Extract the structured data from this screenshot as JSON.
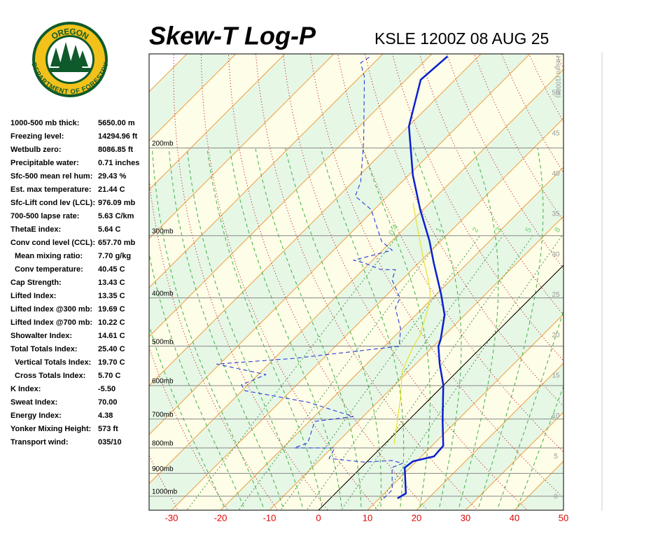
{
  "logo": {
    "top": "OREGON",
    "bottom": "DEPARTMENT OF FORESTRY"
  },
  "title": "Skew-T Log-P",
  "station": "KSLE 1200Z 08 AUG 25",
  "stats": [
    {
      "label": "1000-500 mb thick:",
      "value": "5650.00 m"
    },
    {
      "label": "Freezing level:",
      "value": "14294.96 ft"
    },
    {
      "label": "Wetbulb zero:",
      "value": "8086.85 ft"
    },
    {
      "label": "Precipitable water:",
      "value": "0.71 inches"
    },
    {
      "label": "Sfc-500 mean rel hum:",
      "value": "29.43 %"
    },
    {
      "label": "Est. max temperature:",
      "value": "21.44 C"
    },
    {
      "label": "Sfc-Lift cond lev (LCL):",
      "value": "976.09 mb"
    },
    {
      "label": "700-500 lapse rate:",
      "value": "5.63 C/km"
    },
    {
      "label": "ThetaE index:",
      "value": "5.64 C"
    },
    {
      "label": "Conv cond level (CCL):",
      "value": "657.70 mb"
    },
    {
      "label": "Mean mixing ratio:",
      "value": "7.70 g/kg",
      "indent": true
    },
    {
      "label": "Conv temperature:",
      "value": "40.45 C",
      "indent": true
    },
    {
      "label": "Cap Strength:",
      "value": "13.43 C"
    },
    {
      "label": "Lifted Index:",
      "value": "13.35 C"
    },
    {
      "label": "Lifted Index @300 mb:",
      "value": "19.69 C"
    },
    {
      "label": "Lifted Index @700 mb:",
      "value": "10.22 C"
    },
    {
      "label": "Showalter Index:",
      "value": "14.61 C"
    },
    {
      "label": "Total Totals Index:",
      "value": "25.40 C"
    },
    {
      "label": "Vertical Totals Index:",
      "value": "19.70 C",
      "indent": true
    },
    {
      "label": "Cross Totals Index:",
      "value": "5.70 C",
      "indent": true
    },
    {
      "label": "K Index:",
      "value": "-5.50"
    },
    {
      "label": "Sweat Index:",
      "value": "70.00"
    },
    {
      "label": "Energy Index:",
      "value": "4.38"
    },
    {
      "label": "Yonker Mixing Height:",
      "value": "573 ft"
    },
    {
      "label": "Transport wind:",
      "value": "035/10"
    }
  ],
  "chart_data": {
    "type": "skewt",
    "xticks": [
      -30,
      -20,
      -10,
      0,
      10,
      20,
      30,
      40,
      50
    ],
    "pressure_ticks": [
      {
        "value": 200,
        "label": "200mb"
      },
      {
        "value": 300,
        "label": "300mb"
      },
      {
        "value": 400,
        "label": "400mb"
      },
      {
        "value": 500,
        "label": "500mb"
      },
      {
        "value": 600,
        "label": "600mb"
      },
      {
        "value": 700,
        "label": "700mb"
      },
      {
        "value": 800,
        "label": "800mb"
      },
      {
        "value": 900,
        "label": "900mb"
      },
      {
        "value": 1000,
        "label": "1000mb"
      }
    ],
    "height_label": "Height (1000ft)",
    "height_ticks": [
      0,
      5,
      10,
      15,
      20,
      25,
      30,
      35,
      40,
      45,
      50
    ],
    "mixing_ratio_labels": [
      0.4,
      1,
      2,
      3,
      5,
      8
    ],
    "series": [
      {
        "color": "#0a1fd0",
        "style": "solid",
        "pressure": [
          1010,
          987,
          876,
          851,
          832,
          792,
          703,
          598,
          543,
          500,
          485,
          433,
          393,
          340,
          307,
          266,
          227,
          181,
          146,
          131
        ],
        "values": [
          13.7,
          14.4,
          8.9,
          9.3,
          12.6,
          12.3,
          6.9,
          -0.1,
          -5.1,
          -9.0,
          -9.9,
          -14.1,
          -19.1,
          -27.0,
          -32.4,
          -40.6,
          -49.1,
          -59.9,
          -67.0,
          -66.3
        ]
      },
      {
        "color": "#1a2ad8",
        "style": "dashed",
        "pressure": [
          1010,
          971,
          876,
          859,
          848,
          854,
          840,
          800,
          800,
          782,
          708,
          692,
          648,
          614,
          598,
          570,
          543,
          529,
          500,
          461,
          419,
          400,
          368,
          351,
          351,
          340,
          336,
          321,
          308,
          266,
          250,
          234,
          193,
          144,
          135,
          131
        ],
        "values": [
          10.9,
          10.9,
          6.3,
          7.6,
          4.9,
          -0.6,
          -8.4,
          -9.4,
          -17.7,
          -15.9,
          -18.9,
          -12.0,
          -24.1,
          -39.4,
          -41.3,
          -38.4,
          -50.6,
          -36.0,
          -17.0,
          -20.3,
          -25.6,
          -26.7,
          -32.0,
          -33.4,
          -36.3,
          -41.3,
          -43.9,
          -38.0,
          -42.0,
          -50.6,
          -56.6,
          -58.4,
          -66.3,
          -79.1,
          -82.7,
          -82.0
        ]
      },
      {
        "color": "#e8e030",
        "style": "solid",
        "pressure": [
          787,
          638,
          561,
          500,
          477,
          419,
          393,
          368,
          334,
          294,
          258
        ],
        "values": [
          2.0,
          -6.0,
          -11.3,
          -14.1,
          -14.9,
          -18.9,
          -21.3,
          -24.6,
          -29.9,
          -36.6,
          -43.4
        ]
      }
    ]
  }
}
